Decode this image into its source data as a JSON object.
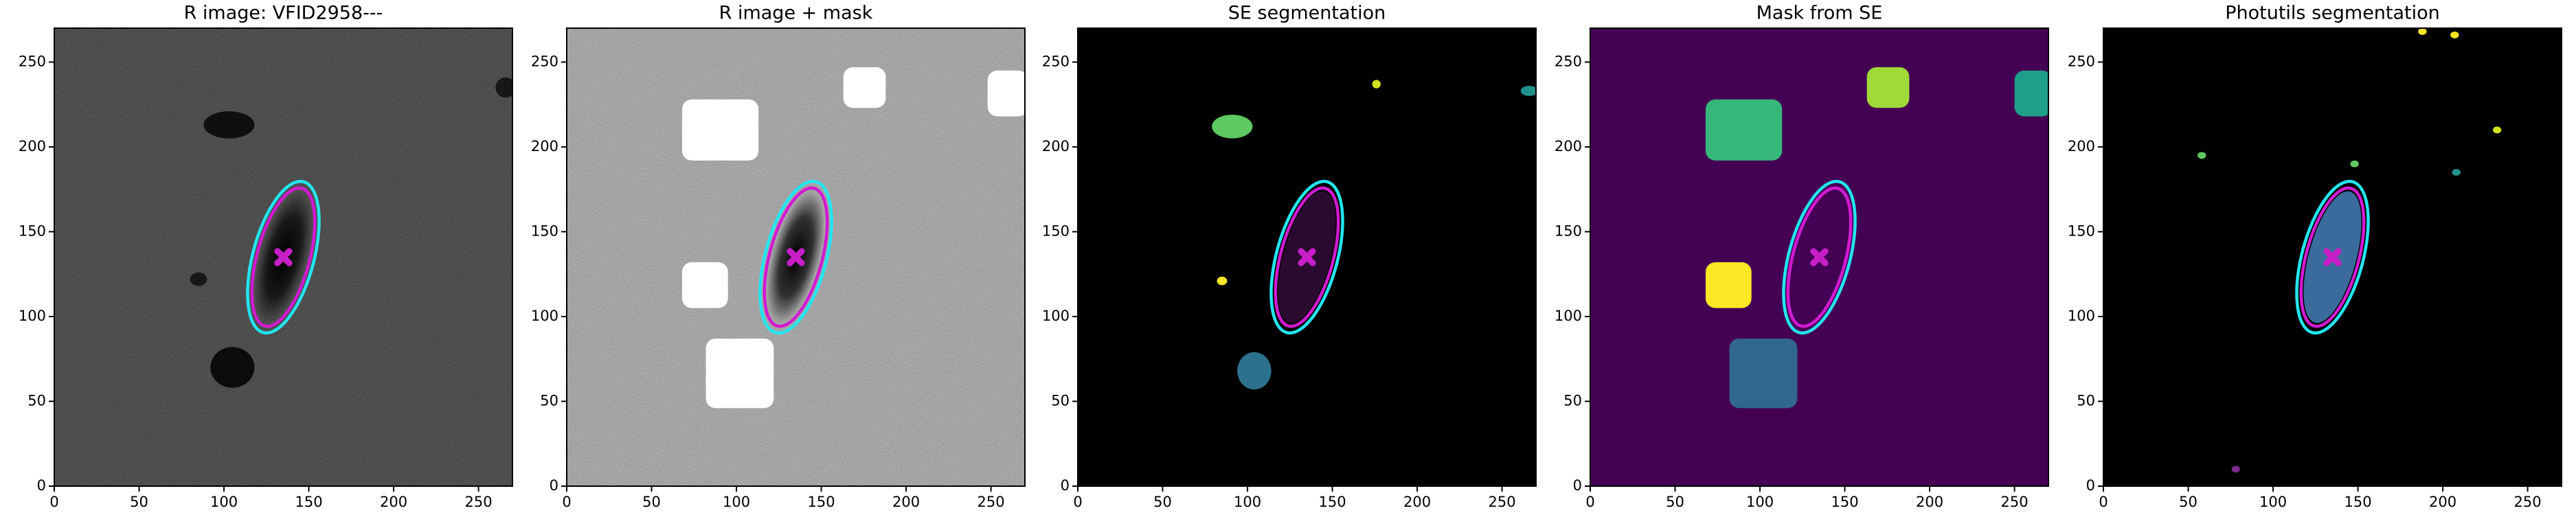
{
  "chart_data": [
    {
      "type": "image",
      "title": "R image: VFID2958---",
      "xlim": [
        0,
        270
      ],
      "ylim": [
        0,
        270
      ],
      "xticks": [
        0,
        50,
        100,
        150,
        200,
        250
      ],
      "yticks": [
        0,
        50,
        100,
        150,
        200,
        250
      ]
    },
    {
      "type": "image",
      "title": "R image + mask",
      "xlim": [
        0,
        270
      ],
      "ylim": [
        0,
        270
      ],
      "xticks": [
        0,
        50,
        100,
        150,
        200,
        250
      ],
      "yticks": [
        0,
        50,
        100,
        150,
        200,
        250
      ]
    },
    {
      "type": "image",
      "title": "SE segmentation",
      "xlim": [
        0,
        270
      ],
      "ylim": [
        0,
        270
      ],
      "xticks": [
        0,
        50,
        100,
        150,
        200,
        250
      ],
      "yticks": [
        0,
        50,
        100,
        150,
        200,
        250
      ]
    },
    {
      "type": "image",
      "title": "Mask from SE",
      "xlim": [
        0,
        270
      ],
      "ylim": [
        0,
        270
      ],
      "xticks": [
        0,
        50,
        100,
        150,
        200,
        250
      ],
      "yticks": [
        0,
        50,
        100,
        150,
        200,
        250
      ]
    },
    {
      "type": "image",
      "title": "Photutils segmentation",
      "xlim": [
        0,
        270
      ],
      "ylim": [
        0,
        270
      ],
      "xticks": [
        0,
        50,
        100,
        150,
        200,
        250
      ],
      "yticks": [
        0,
        50,
        100,
        150,
        200,
        250
      ]
    }
  ]
}
